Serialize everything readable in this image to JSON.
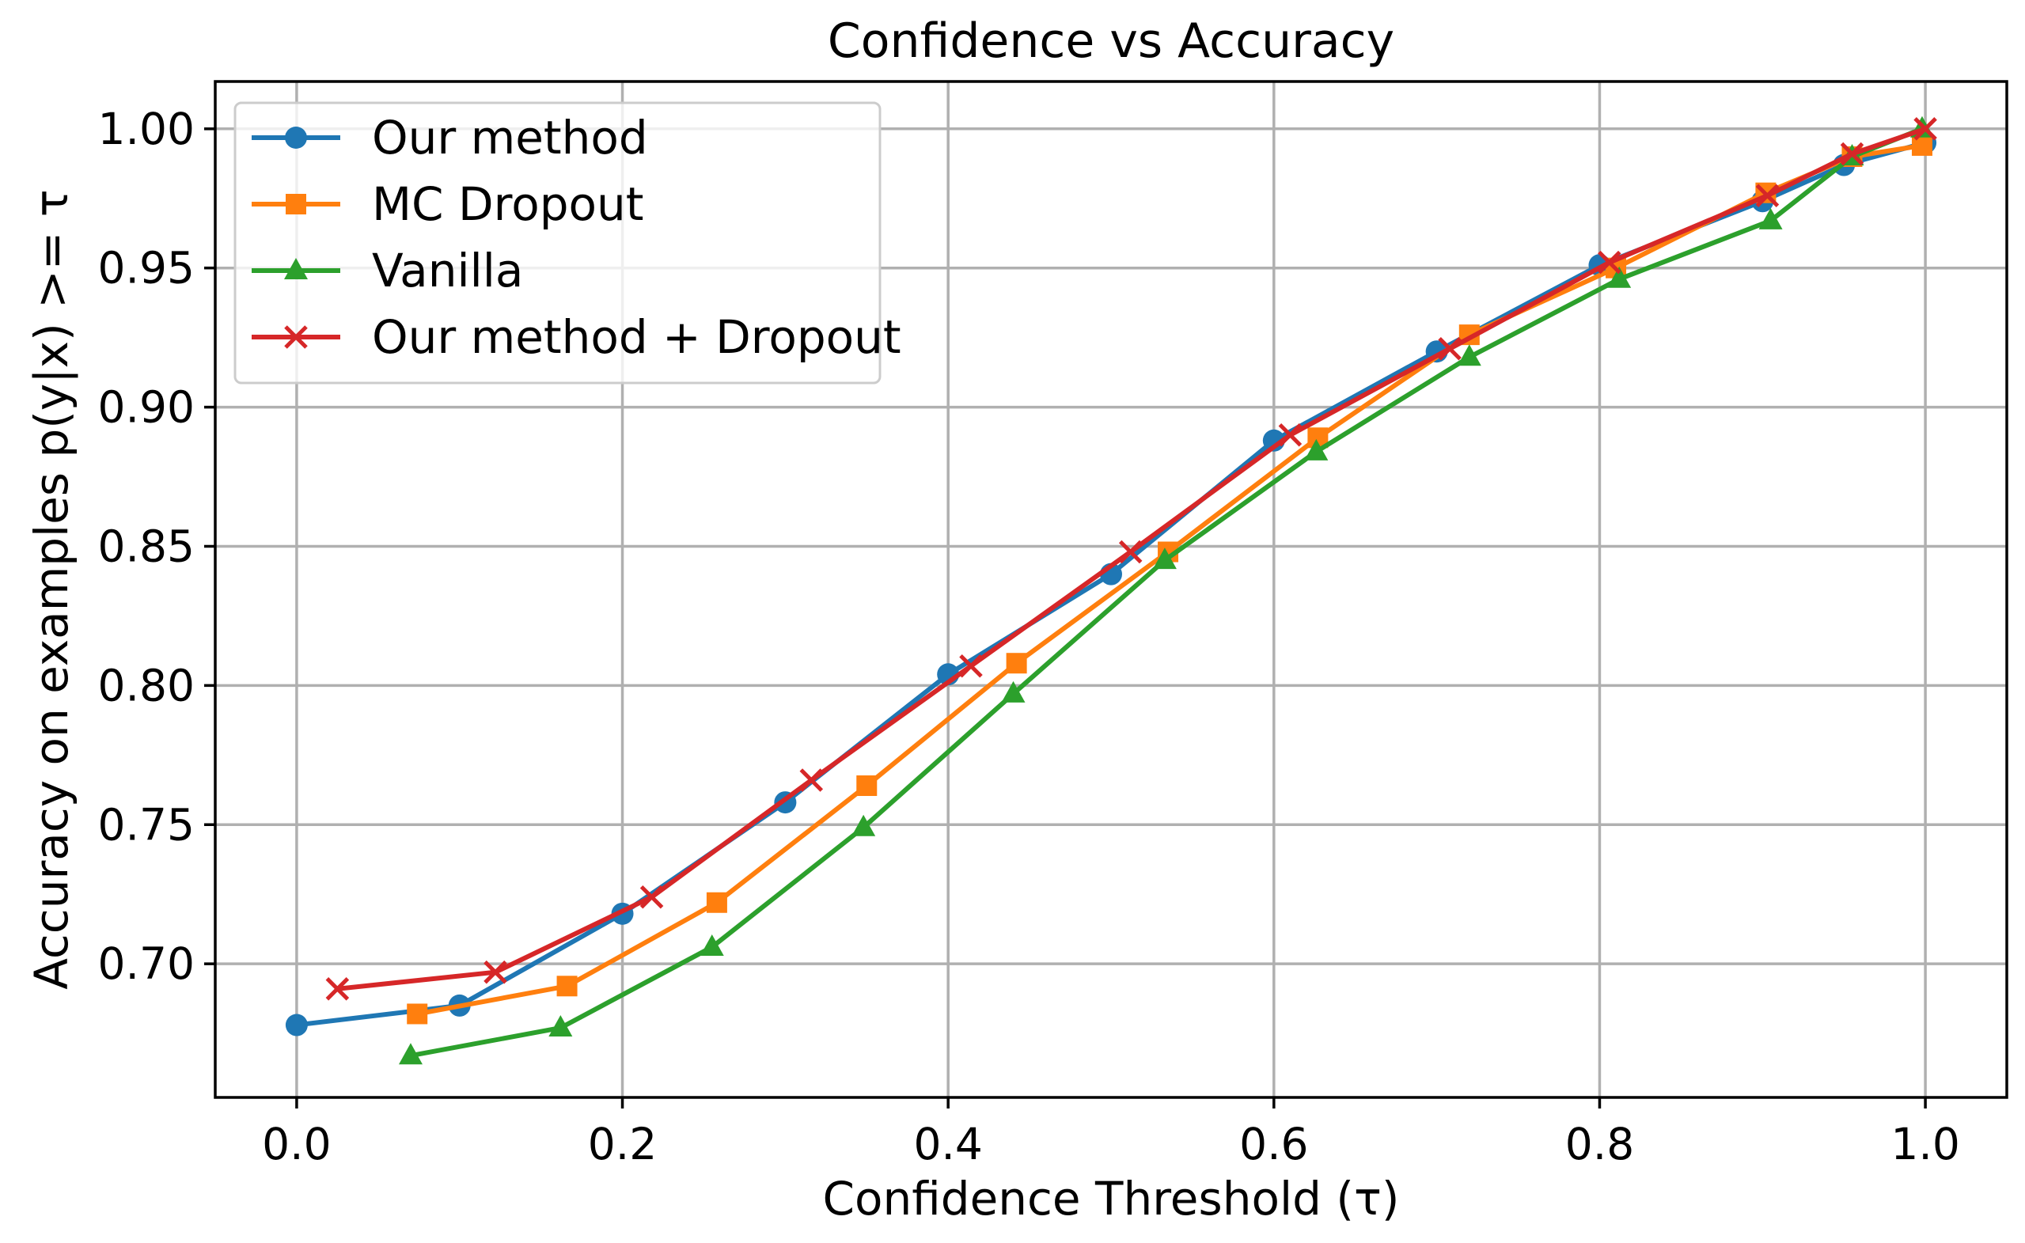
{
  "chart_data": {
    "type": "line",
    "title": "Confidence vs Accuracy",
    "xlabel": "Confidence Threshold (τ)",
    "ylabel": "Accuracy on examples p(y|x) >= τ",
    "xlim": [
      -0.05,
      1.05
    ],
    "ylim": [
      0.652,
      1.017
    ],
    "grid": true,
    "legend_position": "top-left",
    "x_ticks": [
      {
        "value": 0.0,
        "label": "0.0"
      },
      {
        "value": 0.2,
        "label": "0.2"
      },
      {
        "value": 0.4,
        "label": "0.4"
      },
      {
        "value": 0.6,
        "label": "0.6"
      },
      {
        "value": 0.8,
        "label": "0.8"
      },
      {
        "value": 1.0,
        "label": "1.0"
      }
    ],
    "y_ticks": [
      {
        "value": 0.7,
        "label": "0.70"
      },
      {
        "value": 0.75,
        "label": "0.75"
      },
      {
        "value": 0.8,
        "label": "0.80"
      },
      {
        "value": 0.85,
        "label": "0.85"
      },
      {
        "value": 0.9,
        "label": "0.90"
      },
      {
        "value": 0.95,
        "label": "0.95"
      },
      {
        "value": 1.0,
        "label": "1.00"
      }
    ],
    "series": [
      {
        "name": "Our method",
        "color": "#1f77b4",
        "marker": "circle",
        "x": [
          0.0,
          0.1,
          0.2,
          0.3,
          0.4,
          0.5,
          0.6,
          0.7,
          0.8,
          0.9,
          0.95,
          1.0
        ],
        "y": [
          0.678,
          0.685,
          0.718,
          0.758,
          0.804,
          0.84,
          0.888,
          0.92,
          0.951,
          0.974,
          0.987,
          0.995
        ]
      },
      {
        "name": "MC Dropout",
        "color": "#ff7f0e",
        "marker": "square",
        "x": [
          0.074,
          0.166,
          0.258,
          0.35,
          0.442,
          0.535,
          0.627,
          0.72,
          0.81,
          0.902,
          0.955,
          0.998
        ],
        "y": [
          0.682,
          0.692,
          0.722,
          0.764,
          0.808,
          0.848,
          0.889,
          0.926,
          0.95,
          0.977,
          0.99,
          0.994
        ]
      },
      {
        "name": "Vanilla",
        "color": "#2ca02c",
        "marker": "triangle",
        "x": [
          0.07,
          0.162,
          0.255,
          0.348,
          0.44,
          0.533,
          0.626,
          0.72,
          0.812,
          0.905,
          0.955,
          0.998
        ],
        "y": [
          0.667,
          0.677,
          0.706,
          0.749,
          0.797,
          0.845,
          0.884,
          0.918,
          0.946,
          0.967,
          0.99,
          1.0
        ]
      },
      {
        "name": "Our method + Dropout",
        "color": "#d62728",
        "marker": "x",
        "x": [
          0.025,
          0.122,
          0.218,
          0.316,
          0.414,
          0.512,
          0.61,
          0.708,
          0.806,
          0.903,
          0.955,
          1.0
        ],
        "y": [
          0.691,
          0.697,
          0.724,
          0.766,
          0.807,
          0.848,
          0.89,
          0.921,
          0.952,
          0.976,
          0.991,
          1.0
        ]
      }
    ]
  }
}
